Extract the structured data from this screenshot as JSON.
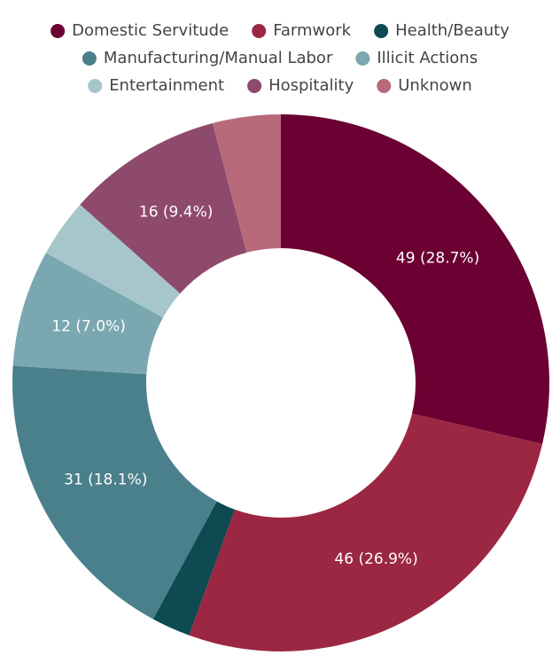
{
  "chart_data": {
    "type": "donut",
    "categories": [
      "Domestic Servitude",
      "Farmwork",
      "Health/Beauty",
      "Manufacturing/Manual Labor",
      "Illicit Actions",
      "Entertainment",
      "Hospitality",
      "Unknown"
    ],
    "values": [
      49,
      46,
      4,
      31,
      12,
      6,
      16,
      7
    ],
    "value_labels": [
      "49 (28.7%)",
      "46 (26.9%)",
      null,
      "31 (18.1%)",
      "12 (7.0%)",
      null,
      "16 (9.4%)",
      null
    ],
    "colors": [
      "#6b0032",
      "#9b2743",
      "#0d4a52",
      "#4a808c",
      "#7aa7b0",
      "#a6c6cb",
      "#8e4a6c",
      "#b86a7a"
    ],
    "legend": "top",
    "legend_rows": [
      [
        0,
        1,
        2
      ],
      [
        3,
        4
      ],
      [
        5,
        6,
        7
      ]
    ]
  }
}
